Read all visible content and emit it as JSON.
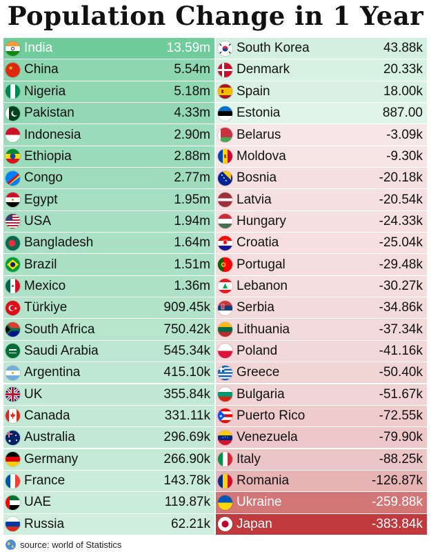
{
  "title": "Population Change in 1 Year",
  "source": "source: world of Statistics",
  "colors": {
    "pos": "#3fba79",
    "neg": "#c0393c"
  },
  "chart_data": {
    "type": "table",
    "title": "Population Change in 1 Year",
    "columns": [
      [
        {
          "country": "India",
          "value": 13590000,
          "label": "13.59m",
          "flag": "india-flag"
        },
        {
          "country": "China",
          "value": 5540000,
          "label": "5.54m",
          "flag": "china-flag"
        },
        {
          "country": "Nigeria",
          "value": 5180000,
          "label": "5.18m",
          "flag": "nigeria-flag"
        },
        {
          "country": "Pakistan",
          "value": 4330000,
          "label": "4.33m",
          "flag": "pakistan-flag"
        },
        {
          "country": "Indonesia",
          "value": 2900000,
          "label": "2.90m",
          "flag": "indonesia-flag"
        },
        {
          "country": "Ethiopia",
          "value": 2880000,
          "label": "2.88m",
          "flag": "ethiopia-flag"
        },
        {
          "country": "Congo",
          "value": 2770000,
          "label": "2.77m",
          "flag": "congo-flag"
        },
        {
          "country": "Egypt",
          "value": 1950000,
          "label": "1.95m",
          "flag": "egypt-flag"
        },
        {
          "country": "USA",
          "value": 1940000,
          "label": "1.94m",
          "flag": "usa-flag"
        },
        {
          "country": "Bangladesh",
          "value": 1640000,
          "label": "1.64m",
          "flag": "bangladesh-flag"
        },
        {
          "country": "Brazil",
          "value": 1510000,
          "label": "1.51m",
          "flag": "brazil-flag"
        },
        {
          "country": "Mexico",
          "value": 1360000,
          "label": "1.36m",
          "flag": "mexico-flag"
        },
        {
          "country": "Türkiye",
          "value": 909450,
          "label": "909.45k",
          "flag": "turkiye-flag"
        },
        {
          "country": "South Africa",
          "value": 750420,
          "label": "750.42k",
          "flag": "south-africa-flag"
        },
        {
          "country": "Saudi Arabia",
          "value": 545340,
          "label": "545.34k",
          "flag": "saudi-arabia-flag"
        },
        {
          "country": "Argentina",
          "value": 415100,
          "label": "415.10k",
          "flag": "argentina-flag"
        },
        {
          "country": "UK",
          "value": 355840,
          "label": "355.84k",
          "flag": "uk-flag"
        },
        {
          "country": "Canada",
          "value": 331110,
          "label": "331.11k",
          "flag": "canada-flag"
        },
        {
          "country": "Australia",
          "value": 296690,
          "label": "296.69k",
          "flag": "australia-flag"
        },
        {
          "country": "Germany",
          "value": 266900,
          "label": "266.90k",
          "flag": "germany-flag"
        },
        {
          "country": "France",
          "value": 143780,
          "label": "143.78k",
          "flag": "france-flag"
        },
        {
          "country": "UAE",
          "value": 119870,
          "label": "119.87k",
          "flag": "uae-flag"
        },
        {
          "country": "Russia",
          "value": 62210,
          "label": "62.21k",
          "flag": "russia-flag"
        }
      ],
      [
        {
          "country": "South Korea",
          "value": 43880,
          "label": "43.88k",
          "flag": "south-korea-flag"
        },
        {
          "country": "Denmark",
          "value": 20330,
          "label": "20.33k",
          "flag": "denmark-flag"
        },
        {
          "country": "Spain",
          "value": 18000,
          "label": "18.00k",
          "flag": "spain-flag"
        },
        {
          "country": "Estonia",
          "value": 887,
          "label": "887.00",
          "flag": "estonia-flag"
        },
        {
          "country": "Belarus",
          "value": -3090,
          "label": "-3.09k",
          "flag": "belarus-flag"
        },
        {
          "country": "Moldova",
          "value": -9300,
          "label": "-9.30k",
          "flag": "moldova-flag"
        },
        {
          "country": "Bosnia",
          "value": -20180,
          "label": "-20.18k",
          "flag": "bosnia-flag"
        },
        {
          "country": "Latvia",
          "value": -20540,
          "label": "-20.54k",
          "flag": "latvia-flag"
        },
        {
          "country": "Hungary",
          "value": -24330,
          "label": "-24.33k",
          "flag": "hungary-flag"
        },
        {
          "country": "Croatia",
          "value": -25040,
          "label": "-25.04k",
          "flag": "croatia-flag"
        },
        {
          "country": "Portugal",
          "value": -29480,
          "label": "-29.48k",
          "flag": "portugal-flag"
        },
        {
          "country": "Lebanon",
          "value": -30270,
          "label": "-30.27k",
          "flag": "lebanon-flag"
        },
        {
          "country": "Serbia",
          "value": -34860,
          "label": "-34.86k",
          "flag": "serbia-flag"
        },
        {
          "country": "Lithuania",
          "value": -37340,
          "label": "-37.34k",
          "flag": "lithuania-flag"
        },
        {
          "country": "Poland",
          "value": -41160,
          "label": "-41.16k",
          "flag": "poland-flag"
        },
        {
          "country": "Greece",
          "value": -50400,
          "label": "-50.40k",
          "flag": "greece-flag"
        },
        {
          "country": "Bulgaria",
          "value": -51670,
          "label": "-51.67k",
          "flag": "bulgaria-flag"
        },
        {
          "country": "Puerto Rico",
          "value": -72550,
          "label": "-72.55k",
          "flag": "puerto-rico-flag"
        },
        {
          "country": "Venezuela",
          "value": -79900,
          "label": "-79.90k",
          "flag": "venezuela-flag"
        },
        {
          "country": "Italy",
          "value": -88250,
          "label": "-88.25k",
          "flag": "italy-flag"
        },
        {
          "country": "Romania",
          "value": -126870,
          "label": "-126.87k",
          "flag": "romania-flag"
        },
        {
          "country": "Ukraine",
          "value": -259880,
          "label": "-259.88k",
          "flag": "ukraine-flag"
        },
        {
          "country": "Japan",
          "value": -383840,
          "label": "-383.84k",
          "flag": "japan-flag"
        }
      ]
    ]
  }
}
